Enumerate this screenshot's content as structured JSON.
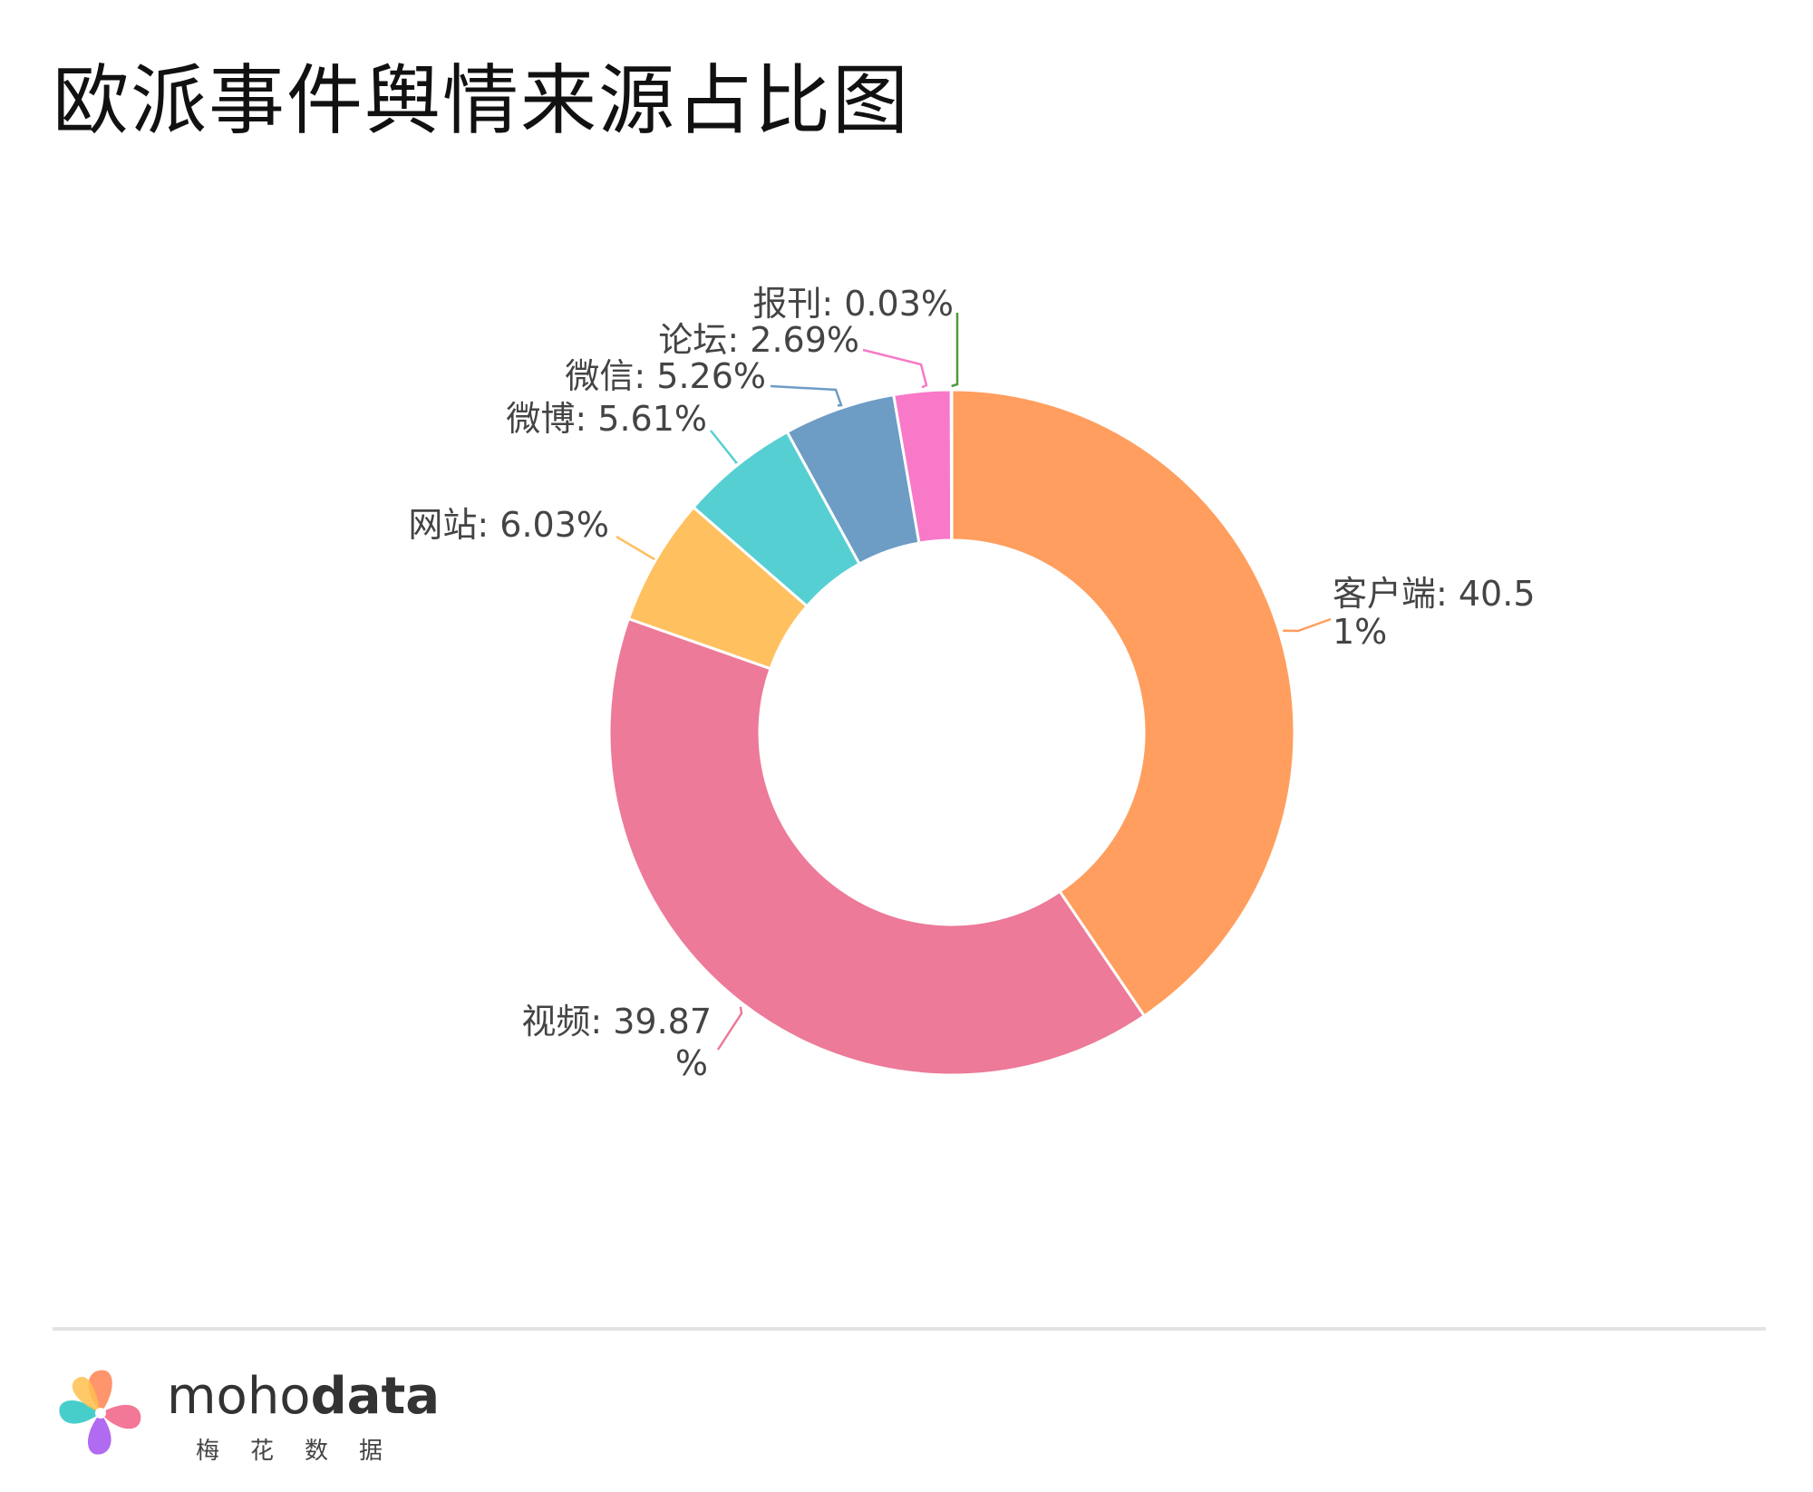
{
  "header": {
    "title": "欧派事件舆情来源占比图"
  },
  "chart_data": {
    "type": "pie",
    "title": "欧派事件舆情来源占比图",
    "donut": true,
    "series": [
      {
        "name": "客户端",
        "value": 40.51,
        "label_line1": "客户端: 40.5",
        "label_line2": "1%",
        "color": "#FF9E5E"
      },
      {
        "name": "视频",
        "value": 39.87,
        "label_line1": "视频: 39.87",
        "label_line2": "%",
        "color": "#EC7A98"
      },
      {
        "name": "网站",
        "value": 6.03,
        "label_line1": "网站: 6.03%",
        "label_line2": "",
        "color": "#FFC060"
      },
      {
        "name": "微博",
        "value": 5.61,
        "label_line1": "微博: 5.61%",
        "label_line2": "",
        "color": "#56CFD2"
      },
      {
        "name": "微信",
        "value": 5.26,
        "label_line1": "微信: 5.26%",
        "label_line2": "",
        "color": "#6D9CC5"
      },
      {
        "name": "论坛",
        "value": 2.69,
        "label_line1": "论坛: 2.69%",
        "label_line2": "",
        "color": "#F779C8"
      },
      {
        "name": "报刊",
        "value": 0.03,
        "label_line1": "报刊: 0.03%",
        "label_line2": "",
        "color": "#4F9A3C"
      }
    ]
  },
  "footer": {
    "brand_regular": "moho",
    "brand_bold": "data",
    "brand_sub": "梅花数据"
  }
}
